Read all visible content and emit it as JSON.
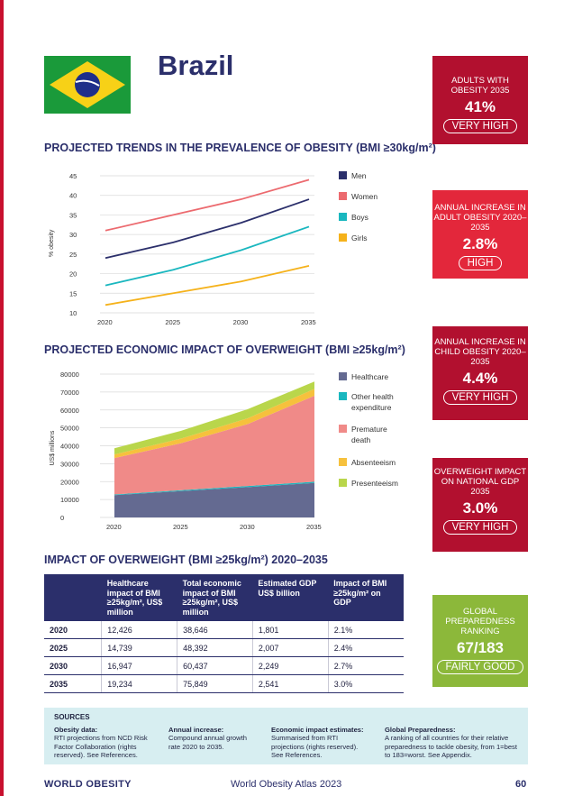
{
  "page_title": "Brazil",
  "sections": {
    "trends": "PROJECTED TRENDS IN THE PREVALENCE OF OBESITY (BMI ≥30kg/m²)",
    "economic": "PROJECTED ECONOMIC IMPACT OF OVERWEIGHT (BMI ≥25kg/m²)",
    "impact": "IMPACT OF OVERWEIGHT (BMI ≥25kg/m²) 2020–2035"
  },
  "stat_boxes": [
    {
      "label": "ADULTS WITH OBESITY 2035",
      "value": "41%",
      "rating": "VERY HIGH",
      "color": "#b2102f"
    },
    {
      "label": "ANNUAL INCREASE IN ADULT OBESITY 2020–2035",
      "value": "2.8%",
      "rating": "HIGH",
      "color": "#e3273b"
    },
    {
      "label": "ANNUAL INCREASE IN CHILD OBESITY 2020–2035",
      "value": "4.4%",
      "rating": "VERY HIGH",
      "color": "#b2102f"
    },
    {
      "label": "OVERWEIGHT IMPACT ON NATIONAL GDP 2035",
      "value": "3.0%",
      "rating": "VERY HIGH",
      "color": "#b2102f"
    },
    {
      "label": "GLOBAL PREPAREDNESS RANKING",
      "value": "67/183",
      "rating": "FAIRLY GOOD",
      "color": "#8cb83a"
    }
  ],
  "chart_data": [
    {
      "type": "line",
      "ylabel": "% obesity",
      "x": [
        2020,
        2025,
        2030,
        2035
      ],
      "x_ticks": [
        "2020",
        "2025",
        "2030",
        "2035"
      ],
      "ylim": [
        10,
        45
      ],
      "y_ticks": [
        "45",
        "40",
        "35",
        "30",
        "25",
        "20",
        "15",
        "10"
      ],
      "grid": true,
      "legend": "right",
      "series": [
        {
          "name": "Men",
          "color": "#2b2f6b",
          "values": [
            24,
            28,
            33,
            39
          ]
        },
        {
          "name": "Women",
          "color": "#ec6a6f",
          "values": [
            31,
            35,
            39,
            44
          ]
        },
        {
          "name": "Boys",
          "color": "#1ab7bf",
          "values": [
            17,
            21,
            26,
            32
          ]
        },
        {
          "name": "Girls",
          "color": "#f5b21b",
          "values": [
            12,
            15,
            18,
            22
          ]
        }
      ]
    },
    {
      "type": "area",
      "ylabel": "US$ millions",
      "x": [
        2020,
        2025,
        2030,
        2035
      ],
      "x_ticks": [
        "2020",
        "2025",
        "2030",
        "2035"
      ],
      "ylim": [
        0,
        80000
      ],
      "y_ticks": [
        "80000",
        "70000",
        "60000",
        "50000",
        "40000",
        "30000",
        "20000",
        "10000",
        "0"
      ],
      "grid": true,
      "legend": "right",
      "series": [
        {
          "name": "Healthcare",
          "color": "#646a91",
          "values": [
            12426,
            14739,
            16947,
            19234
          ]
        },
        {
          "name": "Other health expenditure",
          "color": "#1ab7bf",
          "values": [
            400,
            500,
            600,
            700
          ]
        },
        {
          "name": "Premature death",
          "color": "#f08a88",
          "values": [
            20300,
            26200,
            34600,
            48000
          ]
        },
        {
          "name": "Absenteeism",
          "color": "#f6c13d",
          "values": [
            2000,
            2600,
            3200,
            3800
          ]
        },
        {
          "name": "Presenteeism",
          "color": "#b9d64b",
          "values": [
            3500,
            4300,
            5100,
            4100
          ]
        }
      ]
    }
  ],
  "table": {
    "headers": [
      "",
      "Healthcare impact of BMI ≥25kg/m², US$ million",
      "Total economic impact of BMI ≥25kg/m², US$ million",
      "Estimated GDP US$ billion",
      "Impact of BMI ≥25kg/m² on GDP"
    ],
    "rows": [
      [
        "2020",
        "12,426",
        "38,646",
        "1,801",
        "2.1%"
      ],
      [
        "2025",
        "14,739",
        "48,392",
        "2,007",
        "2.4%"
      ],
      [
        "2030",
        "16,947",
        "60,437",
        "2,249",
        "2.7%"
      ],
      [
        "2035",
        "19,234",
        "75,849",
        "2,541",
        "3.0%"
      ]
    ]
  },
  "sources": {
    "title": "SOURCES",
    "columns": [
      {
        "head": "Obesity data:",
        "text": "RTI projections from NCD Risk Factor Collaboration (rights reserved). See References."
      },
      {
        "head": "Annual increase:",
        "text": "Compound annual growth rate 2020 to 2035."
      },
      {
        "head": "Economic impact estimates:",
        "text": "Summarised from RTI projections (rights reserved). See References."
      },
      {
        "head": "Global Preparedness:",
        "text": "A ranking of all countries for their relative preparedness to tackle obesity, from 1=best to 183=worst. See Appendix."
      }
    ]
  },
  "footer": {
    "brand": "WORLD OBESITY",
    "publication": "World Obesity Atlas 2023",
    "page": "60"
  }
}
